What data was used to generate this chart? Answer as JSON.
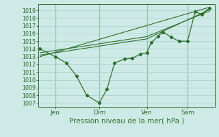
{
  "bg_color": "#ceeae6",
  "grid_color": "#aad4cc",
  "line_color": "#2d6e2d",
  "xlabel": "Pression niveau de la mer( hPa )",
  "ylim": [
    1006.5,
    1019.8
  ],
  "yticks": [
    1007,
    1008,
    1009,
    1010,
    1011,
    1012,
    1013,
    1014,
    1015,
    1016,
    1017,
    1018,
    1019
  ],
  "xtick_labels": [
    "Jeu",
    "Dim",
    "Ven",
    "Sam"
  ],
  "xtick_positions": [
    0.09,
    0.35,
    0.63,
    0.87
  ],
  "xlim": [
    -0.01,
    1.03
  ],
  "series1_x": [
    0.0,
    0.09,
    0.155,
    0.215,
    0.275,
    0.35,
    0.395,
    0.44,
    0.5,
    0.545,
    0.59,
    0.63,
    0.655,
    0.695,
    0.725,
    0.775,
    0.82,
    0.87,
    0.915,
    0.955,
    1.0
  ],
  "series1_y": [
    1014.0,
    1013.0,
    1012.2,
    1010.5,
    1008.0,
    1007.0,
    1008.8,
    1012.2,
    1012.7,
    1012.8,
    1013.3,
    1013.5,
    1014.8,
    1015.6,
    1016.2,
    1015.5,
    1015.0,
    1015.0,
    1018.8,
    1018.5,
    1019.3
  ],
  "series2_x": [
    0.0,
    0.63,
    1.0
  ],
  "series2_y": [
    1013.2,
    1015.3,
    1019.1
  ],
  "series3_x": [
    0.0,
    0.63,
    1.0
  ],
  "series3_y": [
    1013.5,
    1015.6,
    1018.9
  ],
  "series4_x": [
    0.0,
    1.0
  ],
  "series4_y": [
    1013.0,
    1019.4
  ],
  "vline_positions": [
    0.09,
    0.35,
    0.63,
    0.87
  ]
}
